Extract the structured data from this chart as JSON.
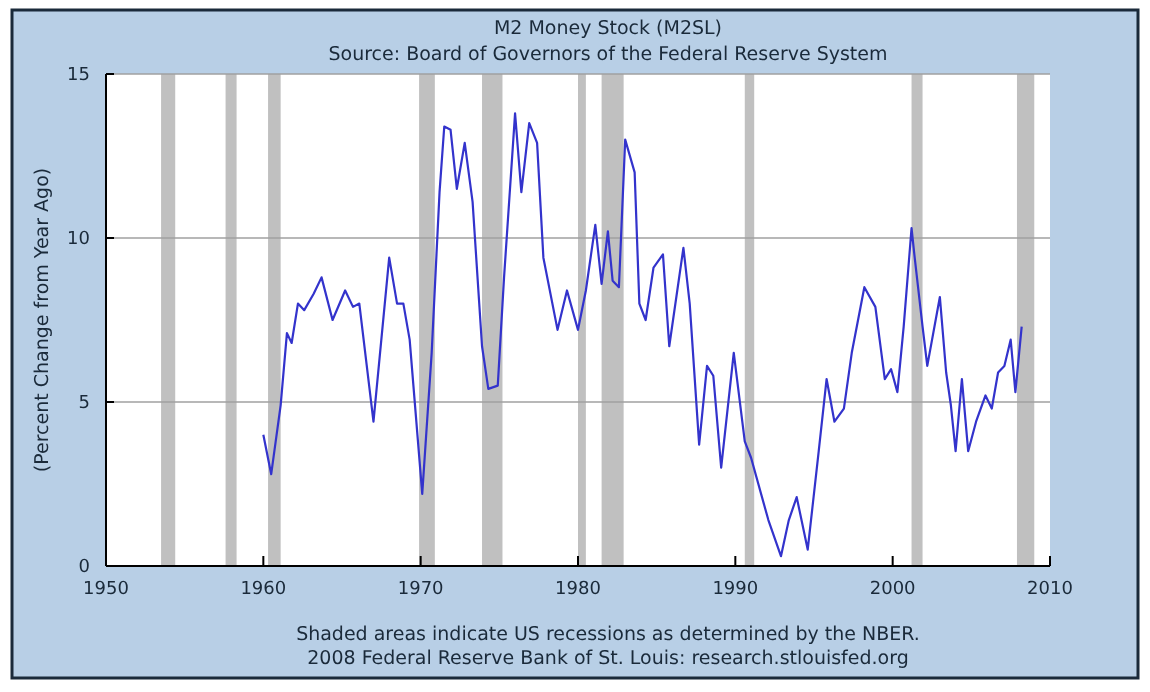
{
  "chart_data": {
    "type": "line",
    "title": "M2 Money Stock (M2SL)",
    "subtitle": "Source: Board of Governors of the Federal Reserve System",
    "ylabel": "(Percent Change from Year Ago)",
    "annotations": [
      "Shaded areas indicate US recessions as determined by the NBER.",
      "2008 Federal Reserve Bank of St. Louis: research.stlouisfed.org"
    ],
    "x": [
      1960.0,
      1960.5,
      1961.1,
      1961.5,
      1961.8,
      1962.2,
      1962.6,
      1963.2,
      1963.7,
      1964.4,
      1965.2,
      1965.7,
      1966.1,
      1967.0,
      1968.0,
      1968.5,
      1968.9,
      1969.3,
      1970.1,
      1970.7,
      1971.2,
      1971.5,
      1971.9,
      1972.3,
      1972.8,
      1973.3,
      1973.9,
      1974.3,
      1974.9,
      1975.3,
      1976.0,
      1976.4,
      1976.9,
      1977.4,
      1977.8,
      1978.7,
      1979.3,
      1980.0,
      1980.5,
      1981.1,
      1981.5,
      1981.9,
      1982.2,
      1982.6,
      1983.0,
      1983.6,
      1983.9,
      1984.3,
      1984.8,
      1985.4,
      1985.8,
      1986.7,
      1987.1,
      1987.7,
      1988.2,
      1988.6,
      1989.1,
      1989.9,
      1990.6,
      1991.0,
      1992.1,
      1992.9,
      1993.4,
      1993.9,
      1994.6,
      1995.3,
      1995.8,
      1996.3,
      1996.9,
      1997.4,
      1998.2,
      1998.9,
      1999.5,
      1999.9,
      2000.3,
      2000.7,
      2001.2,
      2001.4,
      2001.9,
      2002.2,
      2003.0,
      2003.4,
      2003.7,
      2004.0,
      2004.4,
      2004.8,
      2005.3,
      2005.9,
      2006.3,
      2006.7,
      2007.1,
      2007.5,
      2007.8,
      2008.2
    ],
    "series": [
      {
        "color": "#3333cc",
        "values": [
          4.0,
          2.8,
          4.9,
          7.1,
          6.8,
          8.0,
          7.8,
          8.3,
          8.8,
          7.5,
          8.4,
          7.9,
          8.0,
          4.4,
          9.4,
          8.0,
          8.0,
          6.9,
          2.2,
          6.5,
          11.4,
          13.4,
          13.3,
          11.5,
          12.9,
          11.1,
          6.7,
          5.4,
          5.5,
          8.8,
          13.8,
          11.4,
          13.5,
          12.9,
          9.4,
          7.2,
          8.4,
          7.2,
          8.4,
          10.4,
          8.6,
          10.2,
          8.7,
          8.5,
          13.0,
          12.0,
          8.0,
          7.5,
          9.1,
          9.5,
          6.7,
          9.7,
          8.0,
          3.7,
          6.1,
          5.8,
          3.0,
          6.5,
          3.8,
          3.3,
          1.4,
          0.3,
          1.4,
          2.1,
          0.5,
          3.5,
          5.7,
          4.4,
          4.8,
          6.5,
          8.5,
          7.9,
          5.7,
          6.0,
          5.3,
          7.3,
          10.3,
          9.4,
          7.3,
          6.1,
          8.2,
          5.9,
          4.9,
          3.5,
          5.7,
          3.5,
          4.4,
          5.2,
          4.8,
          5.9,
          6.1,
          6.9,
          5.3,
          7.3
        ]
      }
    ],
    "xlim": [
      1950,
      2010
    ],
    "xticks": [
      1950,
      1960,
      1970,
      1980,
      1990,
      2000,
      2010
    ],
    "ylim": [
      0,
      15
    ],
    "yticks": [
      0,
      5,
      10,
      15
    ],
    "grid": "y",
    "bands": [
      {
        "axis": "x",
        "from": 1953.5,
        "to": 1954.4,
        "color": "#c0c0c0"
      },
      {
        "axis": "x",
        "from": 1957.6,
        "to": 1958.3,
        "color": "#c0c0c0"
      },
      {
        "axis": "x",
        "from": 1960.3,
        "to": 1961.1,
        "color": "#c0c0c0"
      },
      {
        "axis": "x",
        "from": 1969.9,
        "to": 1970.9,
        "color": "#c0c0c0"
      },
      {
        "axis": "x",
        "from": 1973.9,
        "to": 1975.2,
        "color": "#c0c0c0"
      },
      {
        "axis": "x",
        "from": 1980.0,
        "to": 1980.5,
        "color": "#c0c0c0"
      },
      {
        "axis": "x",
        "from": 1981.5,
        "to": 1982.9,
        "color": "#c0c0c0"
      },
      {
        "axis": "x",
        "from": 1990.6,
        "to": 1991.2,
        "color": "#c0c0c0"
      },
      {
        "axis": "x",
        "from": 2001.2,
        "to": 2001.9,
        "color": "#c0c0c0"
      },
      {
        "axis": "x",
        "from": 2007.9,
        "to": 2009.0,
        "color": "#c0c0c0"
      }
    ]
  }
}
